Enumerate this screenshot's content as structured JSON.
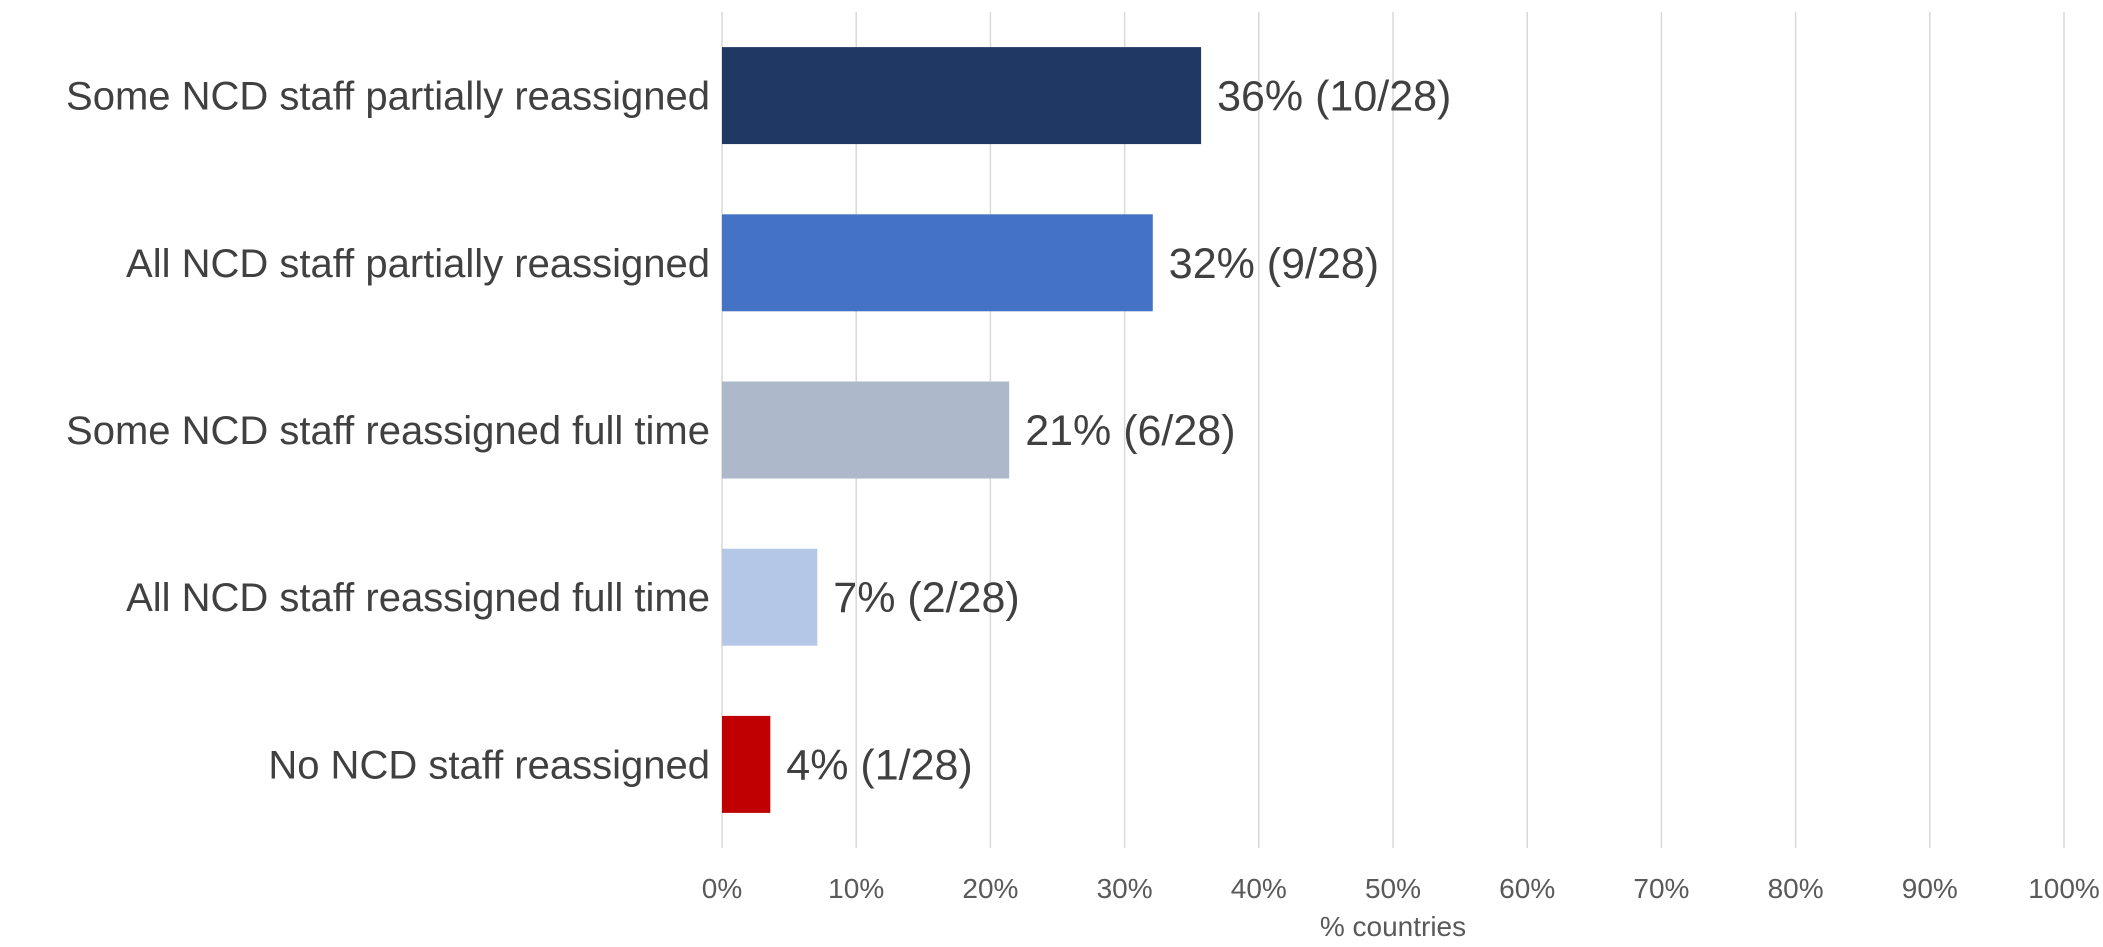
{
  "chart_data": {
    "type": "bar",
    "orientation": "horizontal",
    "categories": [
      "Some NCD staff partially reassigned",
      "All NCD staff partially reassigned",
      "Some NCD staff reassigned full time",
      "All NCD staff reassigned full time",
      "No NCD staff reassigned"
    ],
    "values": [
      35.7,
      32.1,
      21.4,
      7.1,
      3.6
    ],
    "data_labels": [
      "36% (10/28)",
      "32% (9/28)",
      "21% (6/28)",
      "7% (2/28)",
      "4% (1/28)"
    ],
    "colors": [
      "#203864",
      "#4472c4",
      "#adb9ca",
      "#b4c7e7",
      "#c00000"
    ],
    "xlabel": "% countries",
    "xlim": [
      0,
      100
    ],
    "x_ticks": [
      0,
      10,
      20,
      30,
      40,
      50,
      60,
      70,
      80,
      90,
      100
    ],
    "x_tick_labels": [
      "0%",
      "10%",
      "20%",
      "30%",
      "40%",
      "50%",
      "60%",
      "70%",
      "80%",
      "90%",
      "100%"
    ],
    "grid": true,
    "legend": "none"
  }
}
